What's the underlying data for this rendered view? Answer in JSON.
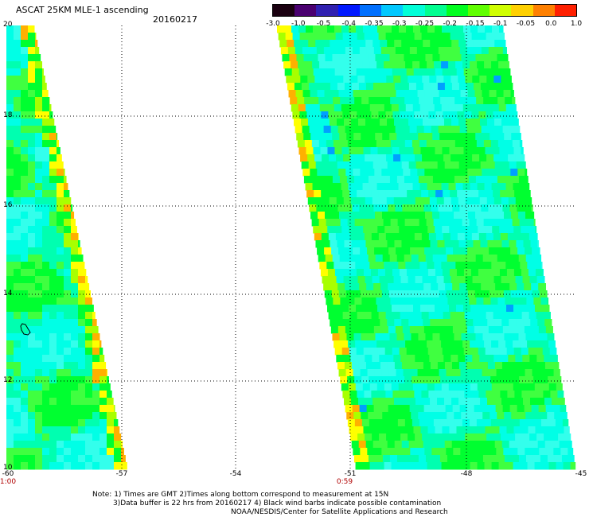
{
  "header": {
    "title": "ASCAT 25KM MLE-1 ascending",
    "date": "20160217"
  },
  "colorbar": {
    "labels": [
      "-3.0",
      "-1.0",
      "-0.5",
      "-0.4",
      "-0.35",
      "-0.3",
      "-0.25",
      "-0.2",
      "-0.15",
      "-0.1",
      "-0.05",
      "0.0",
      "1.0"
    ],
    "colors": [
      "#1a0010",
      "#4a0070",
      "#3020b0",
      "#0018ff",
      "#0070ff",
      "#00c8ff",
      "#00ffd8",
      "#00ff90",
      "#00ff20",
      "#60ff00",
      "#d0ff00",
      "#ffd000",
      "#ff8000",
      "#ff2000"
    ]
  },
  "map": {
    "lat_labels": [
      "20",
      "18",
      "16",
      "14",
      "12",
      "10"
    ],
    "lon_labels": [
      "-60",
      "-57",
      "-54",
      "-51",
      "-48",
      "-45"
    ],
    "time_labels": [
      "1:00",
      "0:59"
    ],
    "colors": {
      "cyan": "#00ffe6",
      "cyan_light": "#33ffec",
      "cyan_green": "#00ffb0",
      "green": "#00ff30",
      "green_light": "#40ff40",
      "yellow_green": "#a8ff00",
      "yellow": "#ffff00",
      "orange": "#ffb000",
      "blue": "#00a0ff",
      "grid": "#000000"
    }
  },
  "footer": {
    "line1": "Note: 1) Times are GMT 2)Times along bottom correspond to measurement at 15N",
    "line2": "3)Data buffer is 22 hrs from 20160217 4) Black wind barbs indicate possible contamination",
    "line3": "NOAA/NESDIS/Center for Satellite Applications and Research"
  }
}
